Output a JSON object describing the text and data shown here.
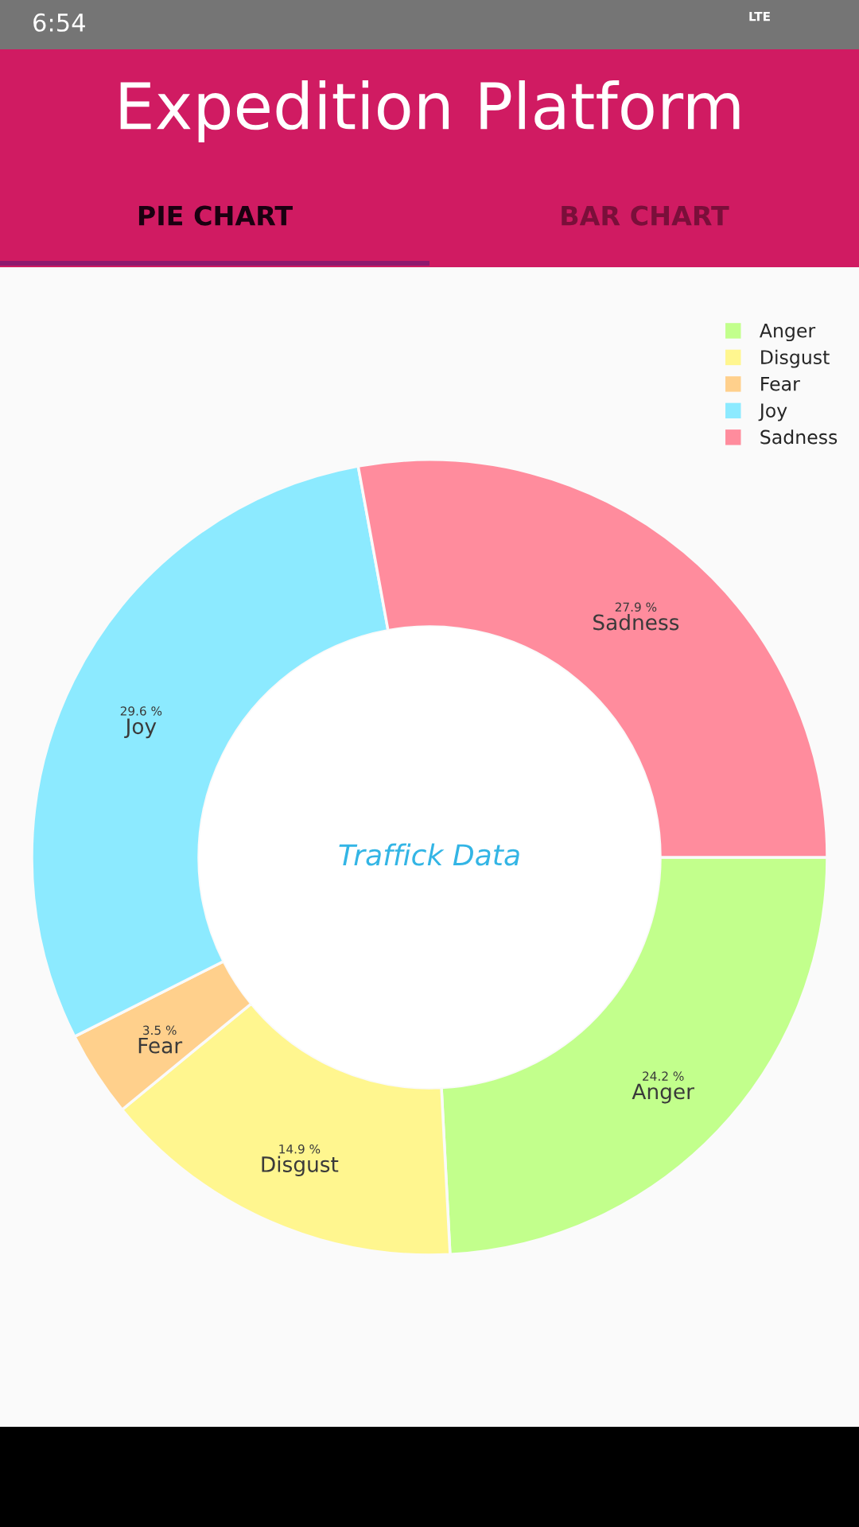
{
  "chart_data": {
    "type": "donut",
    "title": "Expedition Platform",
    "categories": [
      "Anger",
      "Disgust",
      "Fear",
      "Joy",
      "Sadness"
    ],
    "values": [
      24.2,
      14.9,
      3.5,
      29.6,
      27.9
    ],
    "value_labels": [
      "24.2 %",
      "14.9 %",
      "3.5 %",
      "29.6 %",
      "27.9 %"
    ],
    "colors": [
      "#c2ff8c",
      "#fff68f",
      "#ffd08c",
      "#8ceaff",
      "#ff8c9d"
    ],
    "legend": "top right",
    "annotations": [
      "Traffick Data",
      "PIE CHART",
      "BAR CHART",
      "6:54",
      "LTE"
    ]
  }
}
